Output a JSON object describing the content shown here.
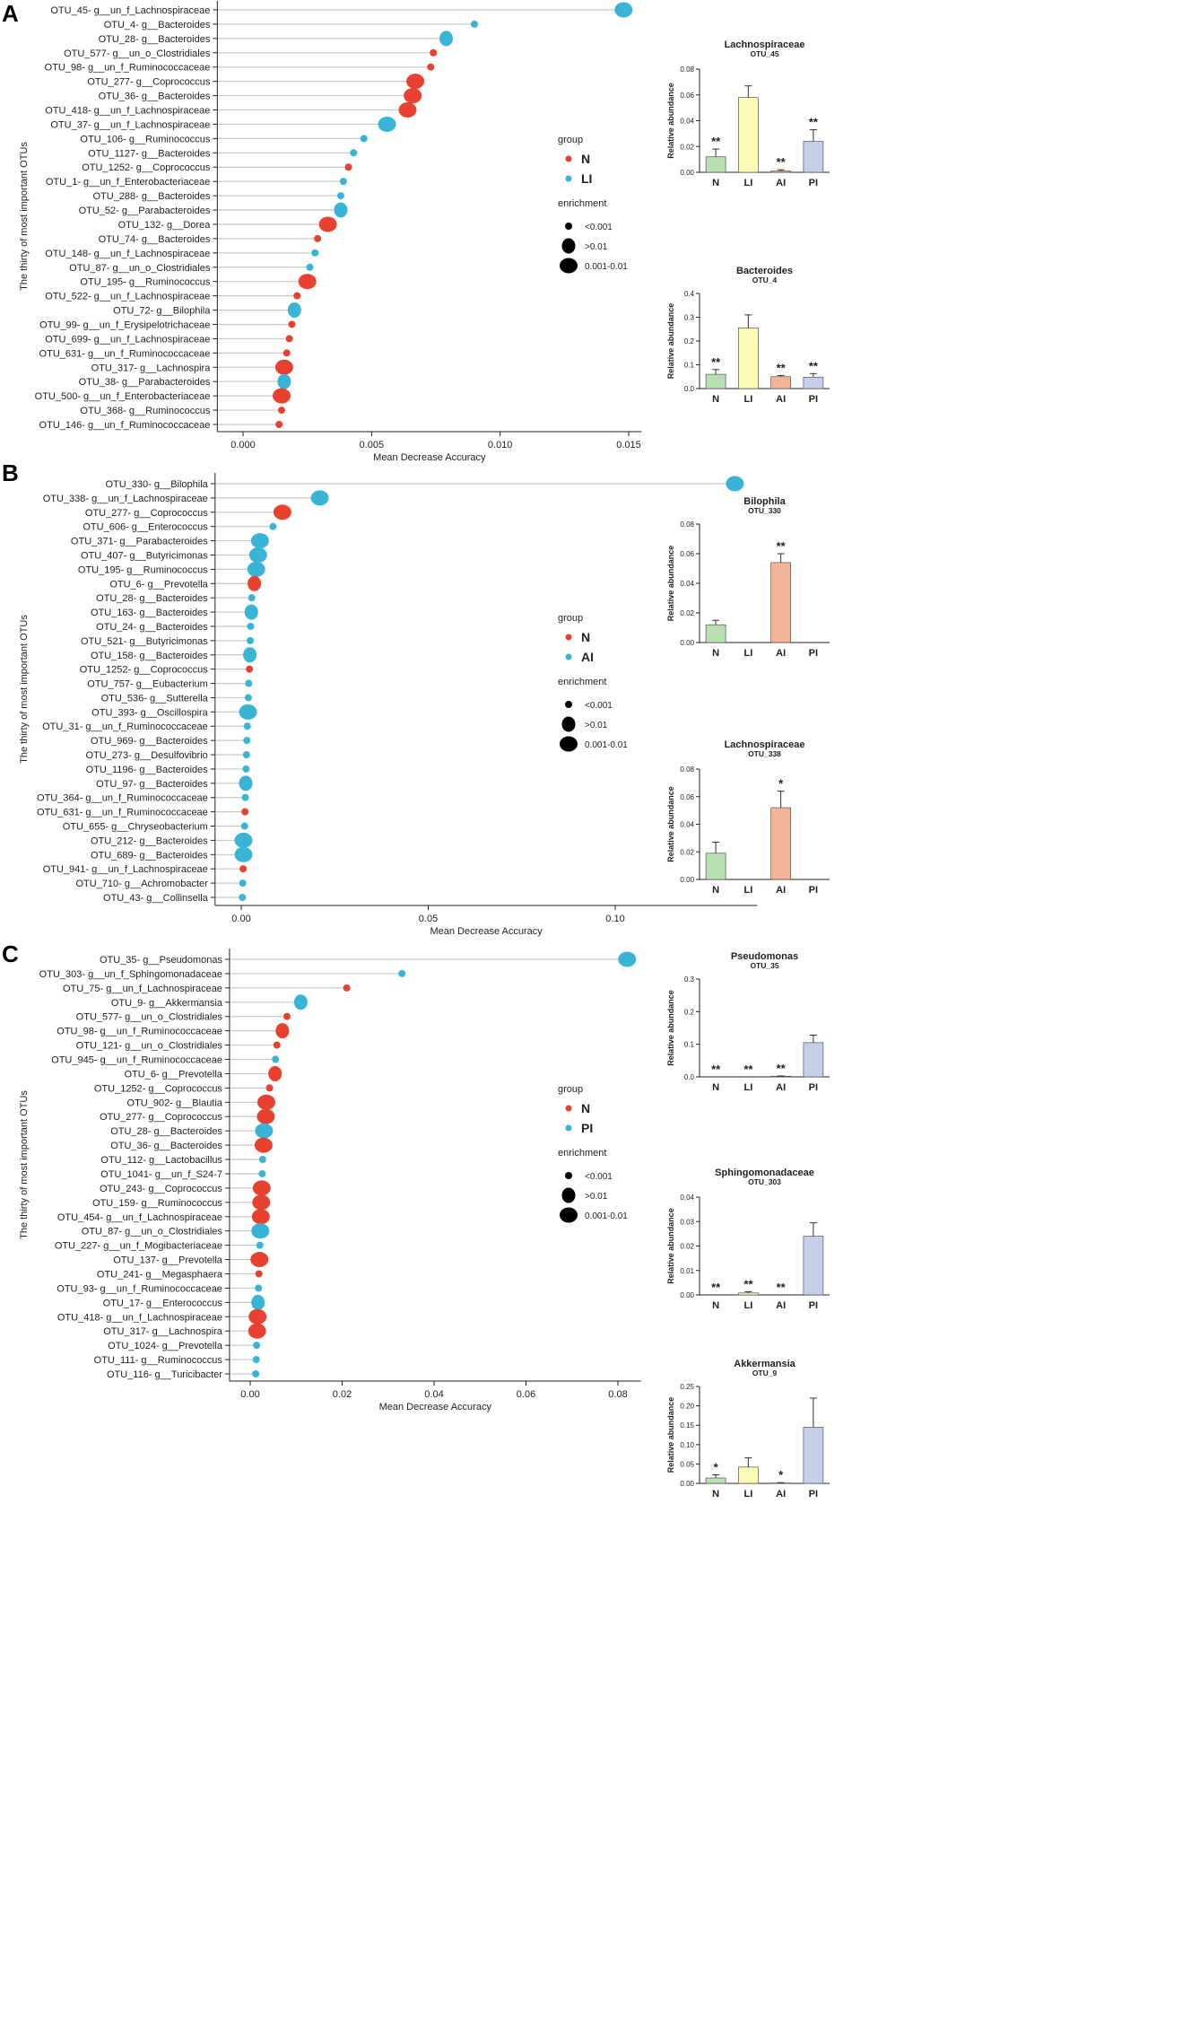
{
  "shared": {
    "legend_group_title": "group",
    "legend_enrichment_title": "enrichment",
    "enrichment_labels": [
      "<0.001",
      ">0.01",
      "0.001-0.01"
    ],
    "y_axis_title": "The thirty of most important OTUs",
    "x_axis_title": "Mean Decrease Accuracy",
    "bar_ylabel": "Relative abundance"
  },
  "panels": [
    {
      "letter": "A"
    },
    {
      "letter": "B"
    },
    {
      "letter": "C"
    }
  ],
  "colors": {
    "N": "#e8412f",
    "LI": "#39b4d6",
    "AI": "#39b4d6",
    "PI": "#39b4d6",
    "segment": "#c8c8c8",
    "bar_N": "#b9dfb2",
    "bar_LI": "#fafab5",
    "bar_AI": "#f4b49a",
    "bar_PI": "#c4cfea",
    "legend_dot": "#000000"
  },
  "chart_data": [
    {
      "type": "dot",
      "panel": "A",
      "title": "",
      "xlabel": "Mean Decrease Accuracy",
      "ylabel": "The thirty of most important OTUs",
      "xlim": [
        -0.001,
        0.0155
      ],
      "xticks": [
        0,
        0.005,
        0.01,
        0.015
      ],
      "xtick_labels": [
        "0.000",
        "0.005",
        "0.010",
        "0.015"
      ],
      "legend_groups": [
        "N",
        "LI"
      ],
      "otus": [
        "OTU_45- g__un_f_Lachnospiraceae",
        "OTU_4- g__Bacteroides",
        "OTU_28- g__Bacteroides",
        "OTU_577- g__un_o_Clostridiales",
        "OTU_98- g__un_f_Ruminococcaceae",
        "OTU_277- g__Coprococcus",
        "OTU_36- g__Bacteroides",
        "OTU_418- g__un_f_Lachnospiraceae",
        "OTU_37- g__un_f_Lachnospiraceae",
        "OTU_106- g__Ruminococcus",
        "OTU_1127- g__Bacteroides",
        "OTU_1252- g__Coprococcus",
        "OTU_1- g__un_f_Enterobacteriaceae",
        "OTU_288- g__Bacteroides",
        "OTU_52- g__Parabacteroides",
        "OTU_132- g__Dorea",
        "OTU_74- g__Bacteroides",
        "OTU_148- g__un_f_Lachnospiraceae",
        "OTU_87- g__un_o_Clostridiales",
        "OTU_195- g__Ruminococcus",
        "OTU_522- g__un_f_Lachnospiraceae",
        "OTU_72- g__Bilophila",
        "OTU_99- g__un_f_Erysipelotrichaceae",
        "OTU_699- g__un_f_Lachnospiraceae",
        "OTU_631- g__un_f_Ruminococcaceae",
        "OTU_317- g__Lachnospira",
        "OTU_38- g__Parabacteroides",
        "OTU_500- g__un_f_Enterobacteriaceae",
        "OTU_368- g__Ruminococcus",
        "OTU_146- g__un_f_Ruminococcaceae"
      ],
      "values": [
        0.0148,
        0.009,
        0.0079,
        0.0074,
        0.0073,
        0.0067,
        0.0066,
        0.0064,
        0.0056,
        0.0047,
        0.0043,
        0.0041,
        0.0039,
        0.0038,
        0.0038,
        0.0033,
        0.0029,
        0.0028,
        0.0026,
        0.0025,
        0.0021,
        0.002,
        0.0019,
        0.0018,
        0.0017,
        0.0016,
        0.0016,
        0.0015,
        0.0015,
        0.0014
      ],
      "groups": [
        "LI",
        "LI",
        "LI",
        "N",
        "N",
        "N",
        "N",
        "N",
        "LI",
        "LI",
        "LI",
        "N",
        "LI",
        "LI",
        "LI",
        "N",
        "N",
        "LI",
        "LI",
        "N",
        "N",
        "LI",
        "N",
        "N",
        "N",
        "N",
        "LI",
        "N",
        "N",
        "N"
      ],
      "enrichment": [
        "0.001-0.01",
        "<0.001",
        ">0.01",
        "<0.001",
        "<0.001",
        "0.001-0.01",
        "0.001-0.01",
        "0.001-0.01",
        "0.001-0.01",
        "<0.001",
        "<0.001",
        "<0.001",
        "<0.001",
        "<0.001",
        ">0.01",
        "0.001-0.01",
        "<0.001",
        "<0.001",
        "<0.001",
        "0.001-0.01",
        "<0.001",
        ">0.01",
        "<0.001",
        "<0.001",
        "<0.001",
        "0.001-0.01",
        ">0.01",
        "0.001-0.01",
        "<0.001",
        "<0.001"
      ]
    },
    {
      "type": "dot",
      "panel": "B",
      "title": "",
      "xlabel": "Mean Decrease Accuracy",
      "ylabel": "The thirty of most important OTUs",
      "xlim": [
        -0.007,
        0.138
      ],
      "xticks": [
        0,
        0.05,
        0.1
      ],
      "xtick_labels": [
        "0.00",
        "0.05",
        "0.10"
      ],
      "legend_groups": [
        "N",
        "AI"
      ],
      "otus": [
        "OTU_330- g__Bilophila",
        "OTU_338- g__un_f_Lachnospiraceae",
        "OTU_277- g__Coprococcus",
        "OTU_606- g__Enterococcus",
        "OTU_371- g__Parabacteroides",
        "OTU_407- g__Butyricimonas",
        "OTU_195- g__Ruminococcus",
        "OTU_6- g__Prevotella",
        "OTU_28- g__Bacteroides",
        "OTU_163- g__Bacteroides",
        "OTU_24- g__Bacteroides",
        "OTU_521- g__Butyricimonas",
        "OTU_158- g__Bacteroides",
        "OTU_1252- g__Coprococcus",
        "OTU_757- g__Eubacterium",
        "OTU_536- g__Sutterella",
        "OTU_393- g__Oscillospira",
        "OTU_31- g__un_f_Ruminococcaceae",
        "OTU_969- g__Bacteroides",
        "OTU_273- g__Desulfovibrio",
        "OTU_1196- g__Bacteroides",
        "OTU_97- g__Bacteroides",
        "OTU_364- g__un_f_Ruminococcaceae",
        "OTU_631- g__un_f_Ruminococcaceae",
        "OTU_655- g__Chryseobacterium",
        "OTU_212- g__Bacteroides",
        "OTU_689- g__Bacteroides",
        "OTU_941- g__un_f_Lachnospiraceae",
        "OTU_710- g__Achromobacter",
        "OTU_43- g__Collinsella"
      ],
      "values": [
        0.132,
        0.021,
        0.011,
        0.0085,
        0.005,
        0.0045,
        0.004,
        0.0035,
        0.0028,
        0.0027,
        0.0025,
        0.0024,
        0.0023,
        0.0022,
        0.002,
        0.0019,
        0.0018,
        0.0016,
        0.0015,
        0.0014,
        0.0013,
        0.0012,
        0.0011,
        0.001,
        0.0009,
        0.0006,
        0.0006,
        0.0005,
        0.0004,
        0.0003
      ],
      "groups": [
        "AI",
        "AI",
        "N",
        "AI",
        "AI",
        "AI",
        "AI",
        "N",
        "AI",
        "AI",
        "AI",
        "AI",
        "AI",
        "N",
        "AI",
        "AI",
        "AI",
        "AI",
        "AI",
        "AI",
        "AI",
        "AI",
        "AI",
        "N",
        "AI",
        "AI",
        "AI",
        "N",
        "AI",
        "AI"
      ],
      "enrichment": [
        "0.001-0.01",
        "0.001-0.01",
        "0.001-0.01",
        "<0.001",
        "0.001-0.01",
        "0.001-0.01",
        "0.001-0.01",
        ">0.01",
        "<0.001",
        ">0.01",
        "<0.001",
        "<0.001",
        ">0.01",
        "<0.001",
        "<0.001",
        "<0.001",
        "0.001-0.01",
        "<0.001",
        "<0.001",
        "<0.001",
        "<0.001",
        ">0.01",
        "<0.001",
        "<0.001",
        "<0.001",
        "0.001-0.01",
        "0.001-0.01",
        "<0.001",
        "<0.001",
        "<0.001"
      ]
    },
    {
      "type": "dot",
      "panel": "C",
      "title": "",
      "xlabel": "Mean Decrease Accuracy",
      "ylabel": "The thirty of most important OTUs",
      "xlim": [
        -0.0045,
        0.085
      ],
      "xticks": [
        0,
        0.02,
        0.04,
        0.06,
        0.08
      ],
      "xtick_labels": [
        "0.00",
        "0.02",
        "0.04",
        "0.06",
        "0.08"
      ],
      "legend_groups": [
        "N",
        "PI"
      ],
      "otus": [
        "OTU_35- g__Pseudomonas",
        "OTU_303- g__un_f_Sphingomonadaceae",
        "OTU_75- g__un_f_Lachnospiraceae",
        "OTU_9- g__Akkermansia",
        "OTU_577- g__un_o_Clostridiales",
        "OTU_98- g__un_f_Ruminococcaceae",
        "OTU_121- g__un_o_Clostridiales",
        "OTU_945- g__un_f_Ruminococcaceae",
        "OTU_6- g__Prevotella",
        "OTU_1252- g__Coprococcus",
        "OTU_902- g__Blautia",
        "OTU_277- g__Coprococcus",
        "OTU_28- g__Bacteroides",
        "OTU_36- g__Bacteroides",
        "OTU_112- g__Lactobacillus",
        "OTU_1041- g__un_f_S24-7",
        "OTU_243- g__Coprococcus",
        "OTU_159- g__Ruminococcus",
        "OTU_454- g__un_f_Lachnospiraceae",
        "OTU_87- g__un_o_Clostridiales",
        "OTU_227- g__un_f_Mogibacteriaceae",
        "OTU_137- g__Prevotella",
        "OTU_241- g__Megasphaera",
        "OTU_93- g__un_f_Ruminococcaceae",
        "OTU_17- g__Enterococcus",
        "OTU_418- g__un_f_Lachnospiraceae",
        "OTU_317- g__Lachnospira",
        "OTU_1024- g__Prevotella",
        "OTU_111- g__Ruminococcus",
        "OTU_116- g__Turicibacter"
      ],
      "values": [
        0.082,
        0.033,
        0.021,
        0.011,
        0.008,
        0.007,
        0.0058,
        0.0055,
        0.0054,
        0.0042,
        0.0035,
        0.0034,
        0.003,
        0.0029,
        0.0027,
        0.0026,
        0.0025,
        0.0024,
        0.0023,
        0.0022,
        0.0021,
        0.002,
        0.0019,
        0.0018,
        0.0017,
        0.0016,
        0.0015,
        0.0014,
        0.0013,
        0.0012
      ],
      "groups": [
        "PI",
        "PI",
        "N",
        "PI",
        "N",
        "N",
        "N",
        "PI",
        "N",
        "N",
        "N",
        "N",
        "PI",
        "N",
        "PI",
        "PI",
        "N",
        "N",
        "N",
        "PI",
        "PI",
        "N",
        "N",
        "PI",
        "PI",
        "N",
        "N",
        "PI",
        "PI",
        "PI"
      ],
      "enrichment": [
        "0.001-0.01",
        "<0.001",
        "<0.001",
        ">0.01",
        "<0.001",
        ">0.01",
        "<0.001",
        "<0.001",
        ">0.01",
        "<0.001",
        "0.001-0.01",
        "0.001-0.01",
        "0.001-0.01",
        "0.001-0.01",
        "<0.001",
        "<0.001",
        "0.001-0.01",
        "0.001-0.01",
        "0.001-0.01",
        "0.001-0.01",
        "<0.001",
        "0.001-0.01",
        "<0.001",
        "<0.001",
        ">0.01",
        "0.001-0.01",
        "0.001-0.01",
        "<0.001",
        "<0.001",
        "<0.001"
      ]
    },
    {
      "type": "bar",
      "panel": "A",
      "title": "Lachnospiraceae",
      "subtitle": "OTU_45",
      "xlabel": "",
      "ylabel": "Relative abundance",
      "categories": [
        "N",
        "LI",
        "AI",
        "PI"
      ],
      "values": [
        0.012,
        0.058,
        0.001,
        0.024
      ],
      "errors": [
        0.006,
        0.009,
        0.001,
        0.009
      ],
      "significance": [
        "**",
        "",
        "**",
        "**"
      ],
      "ylim": [
        0,
        0.08
      ],
      "yticks": [
        0,
        0.02,
        0.04,
        0.06,
        0.08
      ],
      "ytick_labels": [
        "0.00",
        "0.02",
        "0.04",
        "0.06",
        "0.08"
      ]
    },
    {
      "type": "bar",
      "panel": "A",
      "title": "Bacteroides",
      "subtitle": "OTU_4",
      "xlabel": "",
      "ylabel": "Relative abundance",
      "categories": [
        "N",
        "LI",
        "AI",
        "PI"
      ],
      "values": [
        0.06,
        0.255,
        0.05,
        0.048
      ],
      "errors": [
        0.02,
        0.055,
        0.005,
        0.015
      ],
      "significance": [
        "**",
        "",
        "**",
        "**"
      ],
      "ylim": [
        0,
        0.4
      ],
      "yticks": [
        0,
        0.1,
        0.2,
        0.3,
        0.4
      ],
      "ytick_labels": [
        "0.0",
        "0.1",
        "0.2",
        "0.3",
        "0.4"
      ]
    },
    {
      "type": "bar",
      "panel": "B",
      "title": "Bilophila",
      "subtitle": "OTU_330",
      "xlabel": "",
      "ylabel": "Relative abundance",
      "categories": [
        "N",
        "LI",
        "AI",
        "PI"
      ],
      "values": [
        0.012,
        0,
        0.054,
        0
      ],
      "errors": [
        0.003,
        0,
        0.006,
        0
      ],
      "significance": [
        "",
        "",
        "**",
        ""
      ],
      "ylim": [
        0,
        0.08
      ],
      "yticks": [
        0,
        0.02,
        0.04,
        0.06,
        0.08
      ],
      "ytick_labels": [
        "0.00",
        "0.02",
        "0.04",
        "0.06",
        "0.08"
      ]
    },
    {
      "type": "bar",
      "panel": "B",
      "title": "Lachnospiraceae",
      "subtitle": "OTU_338",
      "xlabel": "",
      "ylabel": "Relative abundance",
      "categories": [
        "N",
        "LI",
        "AI",
        "PI"
      ],
      "values": [
        0.019,
        0,
        0.052,
        0
      ],
      "errors": [
        0.008,
        0,
        0.012,
        0
      ],
      "significance": [
        "",
        "",
        "*",
        ""
      ],
      "ylim": [
        0,
        0.08
      ],
      "yticks": [
        0,
        0.02,
        0.04,
        0.06,
        0.08
      ],
      "ytick_labels": [
        "0.00",
        "0.02",
        "0.04",
        "0.06",
        "0.08"
      ]
    },
    {
      "type": "bar",
      "panel": "C",
      "title": "Pseudomonas",
      "subtitle": "OTU_35",
      "xlabel": "",
      "ylabel": "Relative abundance",
      "categories": [
        "N",
        "LI",
        "AI",
        "PI"
      ],
      "values": [
        0,
        0,
        0.002,
        0.105
      ],
      "errors": [
        0,
        0,
        0.001,
        0.023
      ],
      "significance": [
        "**",
        "**",
        "**",
        ""
      ],
      "ylim": [
        0,
        0.3
      ],
      "yticks": [
        0,
        0.1,
        0.2,
        0.3
      ],
      "ytick_labels": [
        "0.0",
        "0.1",
        "0.2",
        "0.3"
      ]
    },
    {
      "type": "bar",
      "panel": "C",
      "title": "Sphingomonadaceae",
      "subtitle": "OTU_303",
      "xlabel": "",
      "ylabel": "Relative abundance",
      "categories": [
        "N",
        "LI",
        "AI",
        "PI"
      ],
      "values": [
        0,
        0.0008,
        0,
        0.024
      ],
      "errors": [
        0,
        0.0005,
        0,
        0.0055
      ],
      "significance": [
        "**",
        "**",
        "**",
        ""
      ],
      "ylim": [
        0,
        0.04
      ],
      "yticks": [
        0,
        0.01,
        0.02,
        0.03,
        0.04
      ],
      "ytick_labels": [
        "0.00",
        "0.01",
        "0.02",
        "0.03",
        "0.04"
      ]
    },
    {
      "type": "bar",
      "panel": "C",
      "title": "Akkermansia",
      "subtitle": "OTU_9",
      "xlabel": "",
      "ylabel": "Relative abundance",
      "categories": [
        "N",
        "LI",
        "AI",
        "PI"
      ],
      "values": [
        0.014,
        0.042,
        0.001,
        0.145
      ],
      "errors": [
        0.008,
        0.024,
        0.001,
        0.075
      ],
      "significance": [
        "*",
        "",
        "*",
        ""
      ],
      "ylim": [
        0,
        0.25
      ],
      "yticks": [
        0,
        0.05,
        0.1,
        0.15,
        0.2,
        0.25
      ],
      "ytick_labels": [
        "0.00",
        "0.05",
        "0.10",
        "0.15",
        "0.20",
        "0.25"
      ]
    }
  ]
}
